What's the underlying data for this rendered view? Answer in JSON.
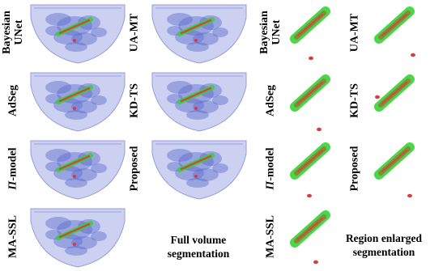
{
  "panels_full": [
    {
      "label_lines": [
        "Bayesian",
        "UNet"
      ],
      "italic_prefix": ""
    },
    {
      "label_lines": [
        "UA-MT"
      ],
      "italic_prefix": ""
    },
    {
      "label_lines": [
        "AdSeg"
      ],
      "italic_prefix": ""
    },
    {
      "label_lines": [
        "KD-TS"
      ],
      "italic_prefix": ""
    },
    {
      "label_lines": [
        "-model"
      ],
      "italic_prefix": "Π"
    },
    {
      "label_lines": [
        "Proposed"
      ],
      "italic_prefix": ""
    },
    {
      "label_lines": [
        "MA-SSL"
      ],
      "italic_prefix": ""
    }
  ],
  "panels_region": [
    {
      "label_lines": [
        "Bayesian",
        "UNet"
      ],
      "italic_prefix": ""
    },
    {
      "label_lines": [
        "UA-MT"
      ],
      "italic_prefix": ""
    },
    {
      "label_lines": [
        "AdSeg"
      ],
      "italic_prefix": ""
    },
    {
      "label_lines": [
        "KD-TS"
      ],
      "italic_prefix": ""
    },
    {
      "label_lines": [
        "-model"
      ],
      "italic_prefix": "Π"
    },
    {
      "label_lines": [
        "Proposed"
      ],
      "italic_prefix": ""
    },
    {
      "label_lines": [
        "MA-SSL"
      ],
      "italic_prefix": ""
    }
  ],
  "captions": {
    "full": [
      "Full volume",
      "segmentation"
    ],
    "region": [
      "Region enlarged",
      "segmentation"
    ]
  },
  "colors": {
    "volume_fill": "#c7cdf0",
    "volume_edge": "#8a93d8",
    "tissue": "#5a6acb",
    "ground_truth": "#35d435",
    "prediction": "#d93c3c",
    "overlap": "#9a7a3a"
  }
}
